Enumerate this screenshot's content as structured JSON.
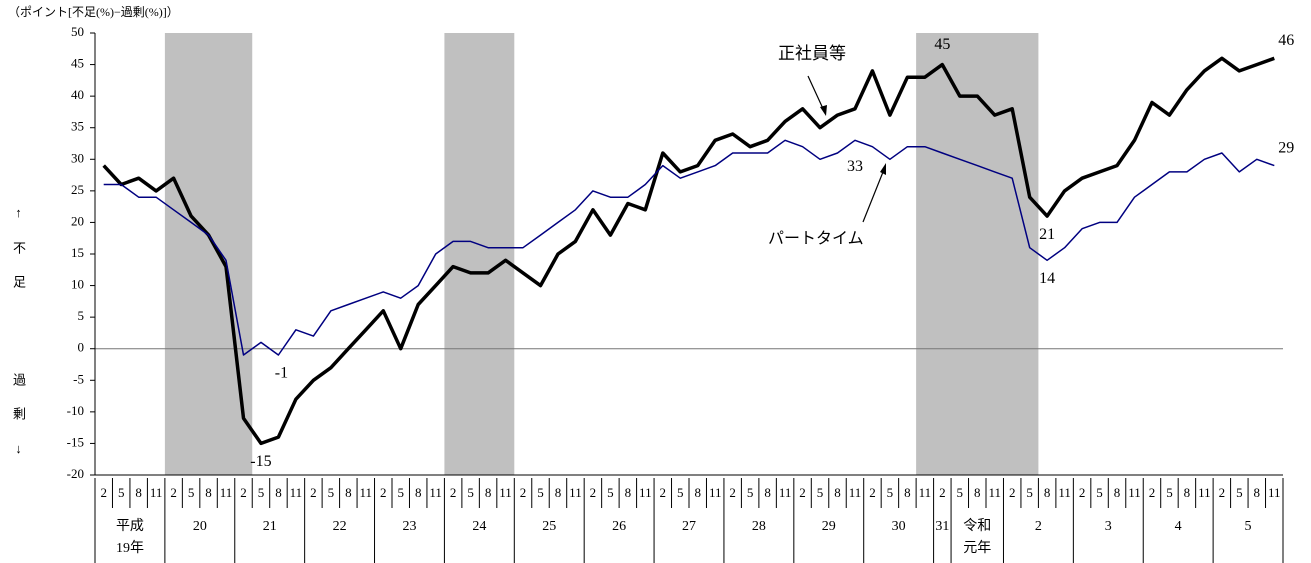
{
  "chart_data": {
    "type": "line",
    "ylabel": "（ポイント[不足(%)−過剰(%)]）",
    "ylabel_upper": "↑不足",
    "ylabel_lower": "過剰↓",
    "categories": [
      "2",
      "5",
      "8",
      "11",
      "2",
      "5",
      "8",
      "11",
      "2",
      "5",
      "8",
      "11",
      "2",
      "5",
      "8",
      "11",
      "2",
      "5",
      "8",
      "11",
      "2",
      "5",
      "8",
      "11",
      "2",
      "5",
      "8",
      "11",
      "2",
      "5",
      "8",
      "11",
      "2",
      "5",
      "8",
      "11",
      "2",
      "5",
      "8",
      "11",
      "2",
      "5",
      "8",
      "11",
      "2",
      "5",
      "8",
      "11",
      "2",
      "5",
      "8",
      "11",
      "2",
      "5",
      "8",
      "11",
      "2",
      "5",
      "8",
      "11",
      "2",
      "5",
      "8",
      "11",
      "2",
      "5",
      "8",
      "11"
    ],
    "year_categories": [
      "平成\n19年",
      null,
      null,
      null,
      "20",
      null,
      null,
      null,
      "21",
      null,
      null,
      null,
      "22",
      null,
      null,
      null,
      "23",
      null,
      null,
      null,
      "24",
      null,
      null,
      null,
      "25",
      null,
      null,
      null,
      "26",
      null,
      null,
      null,
      "27",
      null,
      null,
      null,
      "28",
      null,
      null,
      null,
      "29",
      null,
      null,
      null,
      "30",
      null,
      null,
      null,
      "31",
      "令和\n元年",
      null,
      null,
      "2",
      null,
      null,
      null,
      "3",
      null,
      null,
      null,
      "4",
      null,
      null,
      null,
      "5",
      null,
      null,
      null
    ],
    "series": [
      {
        "name": "正社員等",
        "color": "#000000",
        "width": 3.5,
        "labeled_indices": [
          48,
          67,
          9,
          54
        ],
        "values": [
          29,
          26,
          27,
          25,
          27,
          21,
          18,
          13,
          -11,
          -15,
          -14,
          -8,
          -5,
          -3,
          0,
          3,
          6,
          0,
          7,
          10,
          13,
          12,
          12,
          14,
          12,
          10,
          15,
          17,
          22,
          18,
          23,
          22,
          31,
          28,
          29,
          33,
          34,
          32,
          33,
          36,
          38,
          35,
          37,
          38,
          44,
          37,
          43,
          43,
          45,
          40,
          40,
          37,
          38,
          24,
          21,
          25,
          27,
          28,
          29,
          33,
          39,
          37,
          41,
          44,
          46,
          44,
          45,
          46
        ]
      },
      {
        "name": "パートタイム",
        "color": "#000080",
        "width": 1.5,
        "labeled_indices": [
          10,
          43,
          54,
          67
        ],
        "values": [
          26,
          26,
          24,
          24,
          22,
          20,
          18,
          14,
          -1,
          1,
          -1,
          3,
          2,
          6,
          7,
          8,
          9,
          8,
          10,
          15,
          17,
          17,
          16,
          16,
          16,
          18,
          20,
          22,
          25,
          24,
          24,
          26,
          29,
          27,
          28,
          29,
          31,
          31,
          31,
          33,
          32,
          30,
          31,
          33,
          32,
          30,
          32,
          32,
          31,
          30,
          29,
          28,
          27,
          16,
          14,
          16,
          19,
          20,
          20,
          24,
          26,
          28,
          28,
          30,
          31,
          28,
          30,
          29
        ]
      }
    ],
    "shaded_periods": [
      [
        4,
        8
      ],
      [
        20,
        23
      ],
      [
        47,
        53
      ]
    ],
    "shade_color": "#c0c0c0",
    "ylim": [
      -20,
      50
    ],
    "yticks": [
      -20,
      -15,
      -10,
      -5,
      0,
      5,
      10,
      15,
      20,
      25,
      30,
      35,
      40,
      45,
      50
    ]
  }
}
